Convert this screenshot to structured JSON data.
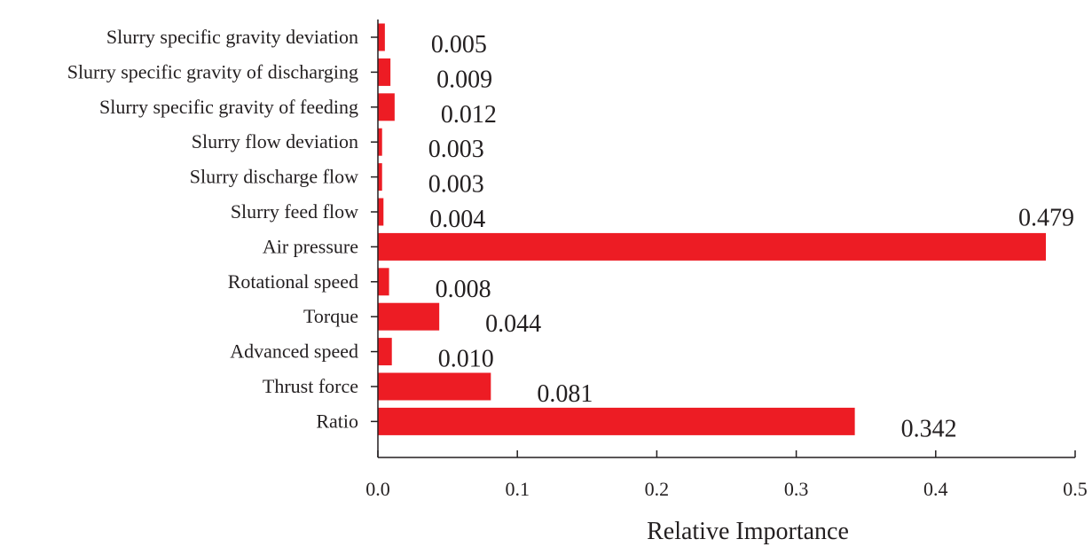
{
  "chart_data": {
    "type": "bar",
    "orientation": "horizontal",
    "title": "",
    "xlabel": "Relative Importance",
    "ylabel": "",
    "xlim": [
      0.0,
      0.5
    ],
    "xticks": [
      "0.0",
      "0.1",
      "0.2",
      "0.3",
      "0.4",
      "0.5"
    ],
    "grid": false,
    "bar_color": "#ed1c24",
    "categories": [
      "Slurry specific gravity deviation",
      "Slurry specific gravity of discharging",
      "Slurry specific gravity of feeding",
      "Slurry flow deviation",
      "Slurry discharge flow",
      "Slurry feed flow",
      "Air pressure",
      "Rotational speed",
      "Torque",
      "Advanced speed",
      "Thrust force",
      "Ratio"
    ],
    "values": [
      0.005,
      0.009,
      0.012,
      0.003,
      0.003,
      0.004,
      0.479,
      0.008,
      0.044,
      0.01,
      0.081,
      0.342
    ],
    "value_labels": [
      "0.005",
      "0.009",
      "0.012",
      "0.003",
      "0.003",
      "0.004",
      "0.479",
      "0.008",
      "0.044",
      "0.010",
      "0.081",
      "0.342"
    ]
  }
}
